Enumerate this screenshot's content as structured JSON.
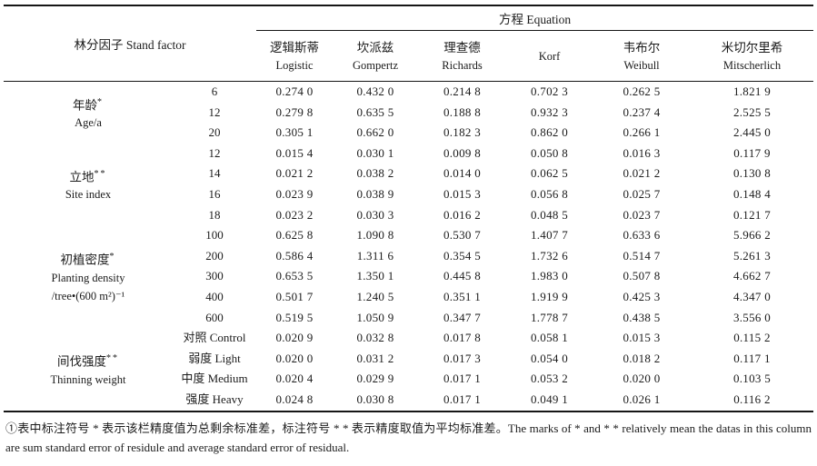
{
  "table": {
    "stand_factor_header": "林分因子 Stand factor",
    "equation_header": "方程 Equation",
    "columns": [
      {
        "zh": "逻辑斯蒂",
        "en": "Logistic"
      },
      {
        "zh": "坎派兹",
        "en": "Gompertz"
      },
      {
        "zh": "理查德",
        "en": "Richards"
      },
      {
        "zh": "",
        "en": "Korf"
      },
      {
        "zh": "韦布尔",
        "en": "Weibull"
      },
      {
        "zh": "米切尔里希",
        "en": "Mitscherlich"
      }
    ],
    "groups": [
      {
        "zh": "年龄",
        "mark": "*",
        "en": "Age/a",
        "sub": "",
        "rows": [
          {
            "level": "6",
            "values": [
              "0.274 0",
              "0.432 0",
              "0.214 8",
              "0.702 3",
              "0.262 5",
              "1.821 9"
            ]
          },
          {
            "level": "12",
            "values": [
              "0.279 8",
              "0.635 5",
              "0.188 8",
              "0.932 3",
              "0.237 4",
              "2.525 5"
            ]
          },
          {
            "level": "20",
            "values": [
              "0.305 1",
              "0.662 0",
              "0.182 3",
              "0.862 0",
              "0.266 1",
              "2.445 0"
            ]
          }
        ]
      },
      {
        "zh": "立地",
        "mark": "**",
        "en": "Site index",
        "sub": "",
        "rows": [
          {
            "level": "12",
            "values": [
              "0.015 4",
              "0.030 1",
              "0.009 8",
              "0.050 8",
              "0.016 3",
              "0.117 9"
            ]
          },
          {
            "level": "14",
            "values": [
              "0.021 2",
              "0.038 2",
              "0.014 0",
              "0.062 5",
              "0.021 2",
              "0.130 8"
            ]
          },
          {
            "level": "16",
            "values": [
              "0.023 9",
              "0.038 9",
              "0.015 3",
              "0.056 8",
              "0.025 7",
              "0.148 4"
            ]
          },
          {
            "level": "18",
            "values": [
              "0.023 2",
              "0.030 3",
              "0.016 2",
              "0.048 5",
              "0.023 7",
              "0.121 7"
            ]
          }
        ]
      },
      {
        "zh": "初植密度",
        "mark": "*",
        "en": "Planting density",
        "sub": "/tree•(600 m²)⁻¹",
        "rows": [
          {
            "level": "100",
            "values": [
              "0.625 8",
              "1.090 8",
              "0.530 7",
              "1.407 7",
              "0.633 6",
              "5.966 2"
            ]
          },
          {
            "level": "200",
            "values": [
              "0.586 4",
              "1.311 6",
              "0.354 5",
              "1.732 6",
              "0.514 7",
              "5.261 3"
            ]
          },
          {
            "level": "300",
            "values": [
              "0.653 5",
              "1.350 1",
              "0.445 8",
              "1.983 0",
              "0.507 8",
              "4.662 7"
            ]
          },
          {
            "level": "400",
            "values": [
              "0.501 7",
              "1.240 5",
              "0.351 1",
              "1.919 9",
              "0.425 3",
              "4.347 0"
            ]
          },
          {
            "level": "600",
            "values": [
              "0.519 5",
              "1.050 9",
              "0.347 7",
              "1.778 7",
              "0.438 5",
              "3.556 0"
            ]
          }
        ]
      },
      {
        "zh": "间伐强度",
        "mark": "**",
        "en": "Thinning weight",
        "sub": "",
        "rows": [
          {
            "level": "对照 Control",
            "values": [
              "0.020 9",
              "0.032 8",
              "0.017 8",
              "0.058 1",
              "0.015 3",
              "0.115 2"
            ]
          },
          {
            "level": "弱度 Light",
            "values": [
              "0.020 0",
              "0.031 2",
              "0.017 3",
              "0.054 0",
              "0.018 2",
              "0.117 1"
            ]
          },
          {
            "level": "中度 Medium",
            "values": [
              "0.020 4",
              "0.029 9",
              "0.017 1",
              "0.053 2",
              "0.020 0",
              "0.103 5"
            ]
          },
          {
            "level": "强度 Heavy",
            "values": [
              "0.024 8",
              "0.030 8",
              "0.017 1",
              "0.049 1",
              "0.026 1",
              "0.116 2"
            ]
          }
        ]
      }
    ],
    "footnote": "①表中标注符号 * 表示该栏精度值为总剩余标准差，标注符号 * * 表示精度取值为平均标准差。The marks of * and * * relatively mean the datas in this column are sum standard error of residule and average standard error of residual."
  }
}
